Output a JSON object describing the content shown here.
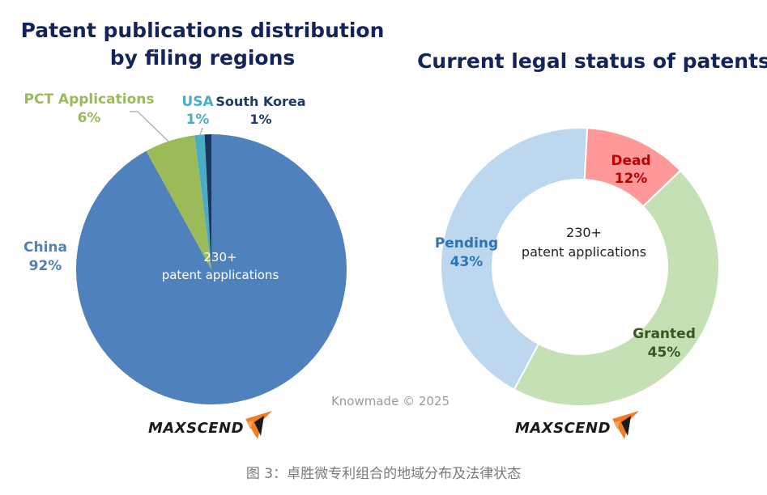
{
  "caption": "图 3：卓胜微专利组合的地域分布及法律状态",
  "watermark": "Knowmade © 2025",
  "brand": "MAXSCEND",
  "chart_data": [
    {
      "type": "pie",
      "title_line1": "Patent publications distribution",
      "title_line2": "by filing regions",
      "center_line1": "230+",
      "center_line2": "patent applications",
      "slices": [
        {
          "name": "China",
          "value": 92,
          "label": "92%",
          "color": "#4f81bd",
          "label_color": "#4f81bd"
        },
        {
          "name": "PCT Applications",
          "value": 6,
          "label": "6%",
          "color": "#9bbb59",
          "label_color": "#9bbb59"
        },
        {
          "name": "USA",
          "value": 1.2,
          "label": "1%",
          "color": "#4bacc6",
          "label_color": "#4bacc6"
        },
        {
          "name": "South Korea",
          "value": 0.8,
          "label": "1%",
          "color": "#17375e",
          "label_color": "#1f3864"
        }
      ]
    },
    {
      "type": "donut",
      "title": "Current legal status of patents",
      "center_line1": "230+",
      "center_line2": "patent applications",
      "slices": [
        {
          "name": "Dead",
          "value": 12,
          "label": "12%",
          "color": "#ff9999",
          "label_color": "#c00000"
        },
        {
          "name": "Granted",
          "value": 45,
          "label": "45%",
          "color": "#c5e0b4",
          "label_color": "#385723"
        },
        {
          "name": "Pending",
          "value": 43,
          "label": "43%",
          "color": "#bdd7ee",
          "label_color": "#2e75b6"
        }
      ]
    }
  ]
}
